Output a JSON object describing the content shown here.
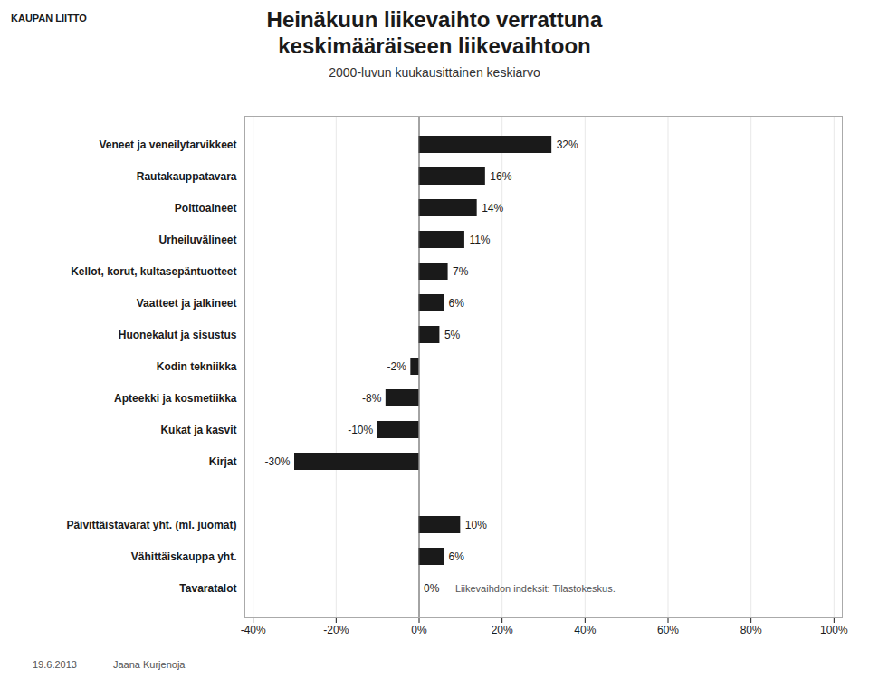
{
  "chart_data": {
    "type": "bar",
    "orientation": "horizontal",
    "title": "Heinäkuun liikevaihto verrattuna\nkeskimääräiseen liikevaihtoon",
    "subtitle": "2000-luvun kuukausittainen keskiarvo",
    "logo_text": "KAUPAN LIITTO",
    "footer": [
      "19.6.2013",
      "Jaana Kurjenoja"
    ],
    "categories": [
      "Veneet ja veneilytarvikkeet",
      "Rautakauppatavara",
      "Polttoaineet",
      "Urheiluvälineet",
      "Kellot, korut, kultasepäntuotteet",
      "Vaatteet ja jalkineet",
      "Huonekalut ja sisustus",
      "Kodin tekniikka",
      "Apteekki ja kosmetiikka",
      "Kukat ja kasvit",
      "Kirjat",
      null,
      "Päivittäistavarat yht. (ml. juomat)",
      "Vähittäiskauppa yht.",
      "Tavaratalot"
    ],
    "values": [
      0.32,
      0.16,
      0.14,
      0.11,
      0.07,
      0.06,
      0.05,
      -0.02,
      -0.08,
      -0.1,
      -0.3,
      null,
      0.1,
      0.06,
      0
    ],
    "value_labels": [
      "32%",
      "16%",
      "14%",
      "11%",
      "7%",
      "6%",
      "5%",
      "-2%",
      "-8%",
      "-10%",
      "-30%",
      null,
      "10%",
      "6%",
      "0%"
    ],
    "data_labels": true,
    "annotations": [
      {
        "text": "Liikevaihdon indeksit: Tilastokeskus.",
        "category": "Tavaratalot"
      }
    ],
    "xlim": [
      -0.42,
      1.02
    ],
    "xticks": [
      {
        "value": -0.4,
        "label": "-40%"
      },
      {
        "value": -0.2,
        "label": "-20%"
      },
      {
        "value": 0.0,
        "label": "0%"
      },
      {
        "value": 0.2,
        "label": "20%"
      },
      {
        "value": 0.4,
        "label": "40%"
      },
      {
        "value": 0.6,
        "label": "60%"
      },
      {
        "value": 0.8,
        "label": "80%"
      },
      {
        "value": 1.0,
        "label": "100%"
      }
    ],
    "grid": true
  }
}
